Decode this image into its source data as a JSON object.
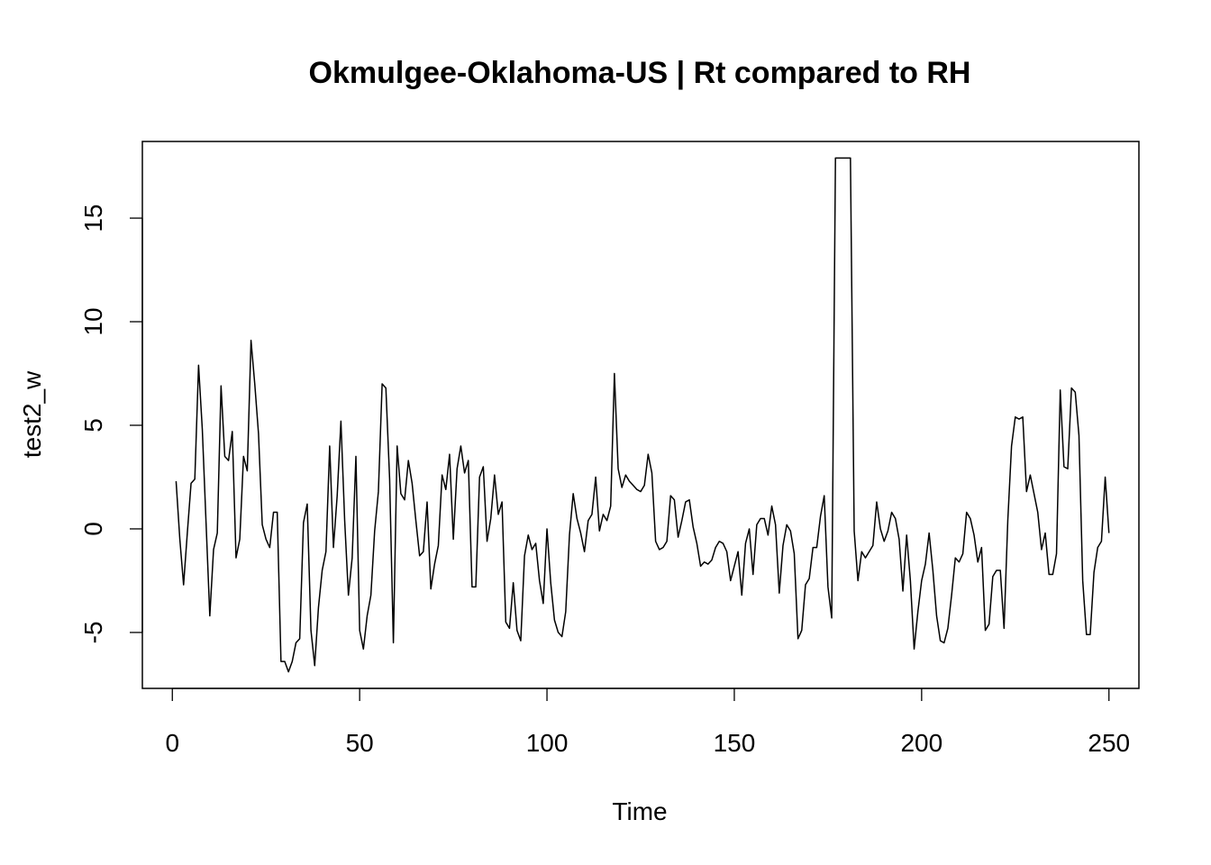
{
  "chart_data": {
    "type": "line",
    "title": "Okmulgee-Oklahoma-US | Rt compared to RH",
    "xlabel": "Time",
    "ylabel": "test2_w",
    "xlim": [
      -8,
      258
    ],
    "ylim": [
      -7.7,
      18.7
    ],
    "x_ticks": [
      0,
      50,
      100,
      150,
      200,
      250
    ],
    "y_ticks": [
      -5,
      0,
      5,
      10,
      15
    ],
    "grid": false,
    "x_start": 1,
    "values": [
      2.3,
      -0.5,
      -2.7,
      -0.2,
      2.2,
      2.4,
      7.9,
      4.8,
      0.3,
      -4.2,
      -1.0,
      -0.2,
      6.9,
      3.5,
      3.3,
      4.7,
      -1.4,
      -0.5,
      3.5,
      2.8,
      9.1,
      7.0,
      4.6,
      0.2,
      -0.5,
      -0.9,
      0.8,
      0.8,
      -6.4,
      -6.4,
      -6.9,
      -6.4,
      -5.5,
      -5.3,
      0.3,
      1.2,
      -4.9,
      -6.6,
      -3.8,
      -2.0,
      -1.1,
      4.0,
      -0.9,
      1.6,
      5.2,
      0.4,
      -3.2,
      -1.4,
      3.5,
      -4.9,
      -5.8,
      -4.2,
      -3.2,
      -0.1,
      1.8,
      7.0,
      6.8,
      2.4,
      -5.5,
      4.0,
      1.7,
      1.4,
      3.3,
      2.2,
      0.4,
      -1.3,
      -1.1,
      1.3,
      -2.9,
      -1.7,
      -0.8,
      2.6,
      1.9,
      3.6,
      -0.5,
      2.9,
      4.0,
      2.7,
      3.3,
      -2.8,
      -2.8,
      2.5,
      3.0,
      -0.6,
      0.5,
      2.6,
      0.7,
      1.3,
      -4.5,
      -4.8,
      -2.6,
      -4.9,
      -5.4,
      -1.3,
      -0.3,
      -1.0,
      -0.7,
      -2.5,
      -3.6,
      0.0,
      -2.6,
      -4.4,
      -5.0,
      -5.2,
      -4.0,
      -0.3,
      1.7,
      0.5,
      -0.2,
      -1.1,
      0.4,
      0.7,
      2.5,
      -0.1,
      0.7,
      0.4,
      1.1,
      7.5,
      2.9,
      2.0,
      2.6,
      2.3,
      2.1,
      1.9,
      1.8,
      2.1,
      3.6,
      2.7,
      -0.6,
      -1.0,
      -0.9,
      -0.6,
      1.6,
      1.4,
      -0.4,
      0.4,
      1.3,
      1.4,
      0.1,
      -0.7,
      -1.8,
      -1.6,
      -1.7,
      -1.5,
      -0.9,
      -0.6,
      -0.7,
      -1.1,
      -2.5,
      -1.8,
      -1.1,
      -3.2,
      -0.7,
      0.0,
      -2.2,
      0.2,
      0.5,
      0.5,
      -0.3,
      1.1,
      0.2,
      -3.1,
      -0.8,
      0.2,
      -0.1,
      -1.2,
      -5.3,
      -4.9,
      -2.7,
      -2.4,
      -0.9,
      -0.9,
      0.6,
      1.6,
      -2.8,
      -4.3,
      17.9,
      17.9,
      17.9,
      17.9,
      17.9,
      -0.1,
      -2.5,
      -1.1,
      -1.4,
      -1.1,
      -0.8,
      1.3,
      0.0,
      -0.6,
      -0.1,
      0.8,
      0.5,
      -0.5,
      -3.0,
      -0.3,
      -2.5,
      -5.8,
      -4.0,
      -2.5,
      -1.7,
      -0.2,
      -2.0,
      -4.2,
      -5.4,
      -5.5,
      -4.8,
      -3.2,
      -1.4,
      -1.6,
      -1.2,
      0.8,
      0.5,
      -0.3,
      -1.6,
      -0.9,
      -4.9,
      -4.6,
      -2.3,
      -2.0,
      -2.0,
      -4.8,
      0.4,
      4.0,
      5.4,
      5.3,
      5.4,
      1.8,
      2.6,
      1.7,
      0.8,
      -1.0,
      -0.2,
      -2.2,
      -2.2,
      -1.2,
      6.7,
      3.0,
      2.9,
      6.8,
      6.6,
      4.5,
      -2.5,
      -5.1,
      -5.1,
      -2.1,
      -0.9,
      -0.6,
      2.5,
      -0.2
    ]
  }
}
